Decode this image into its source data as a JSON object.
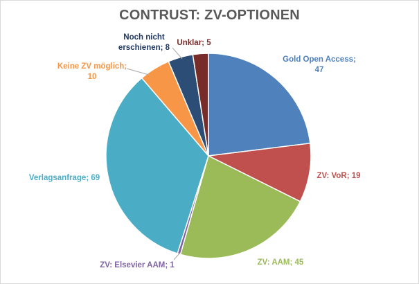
{
  "chart_data": {
    "type": "pie",
    "title": "CONTRUST: ZV-OPTIONEN",
    "slices": [
      {
        "name": "Gold Open Access",
        "value": 47,
        "color": "#4f81bd",
        "label": [
          "Gold Open Access;",
          "47"
        ]
      },
      {
        "name": "ZV: VoR",
        "value": 19,
        "color": "#c0504d",
        "label": [
          "ZV: VoR; 19"
        ]
      },
      {
        "name": "ZV: AAM",
        "value": 45,
        "color": "#9bbb59",
        "label": [
          "ZV: AAM; 45"
        ]
      },
      {
        "name": "ZV: Elsevier AAM",
        "value": 1,
        "color": "#8064a2",
        "label": [
          "ZV: Elsevier AAM; 1"
        ]
      },
      {
        "name": "Verlagsanfrage",
        "value": 69,
        "color": "#4bacc6",
        "label": [
          "Verlagsanfrage;  69"
        ]
      },
      {
        "name": "Keine ZV möglich",
        "value": 10,
        "color": "#f79646",
        "label": [
          "Keine ZV möglich;",
          "10"
        ]
      },
      {
        "name": "Noch nicht erschienen",
        "value": 8,
        "color": "#2c4d75",
        "label": [
          "Noch nicht",
          "erschienen; 8"
        ]
      },
      {
        "name": "Unklar",
        "value": 5,
        "color": "#772c2a",
        "label": [
          "Unklar;  5"
        ]
      }
    ],
    "label_colors": [
      "#4f81bd",
      "#c0504d",
      "#9bbb59",
      "#8064a2",
      "#4bacc6",
      "#f79646",
      "#1f3864",
      "#772c2a"
    ],
    "legend": "none",
    "start_angle": "12 o'clock, clockwise"
  }
}
